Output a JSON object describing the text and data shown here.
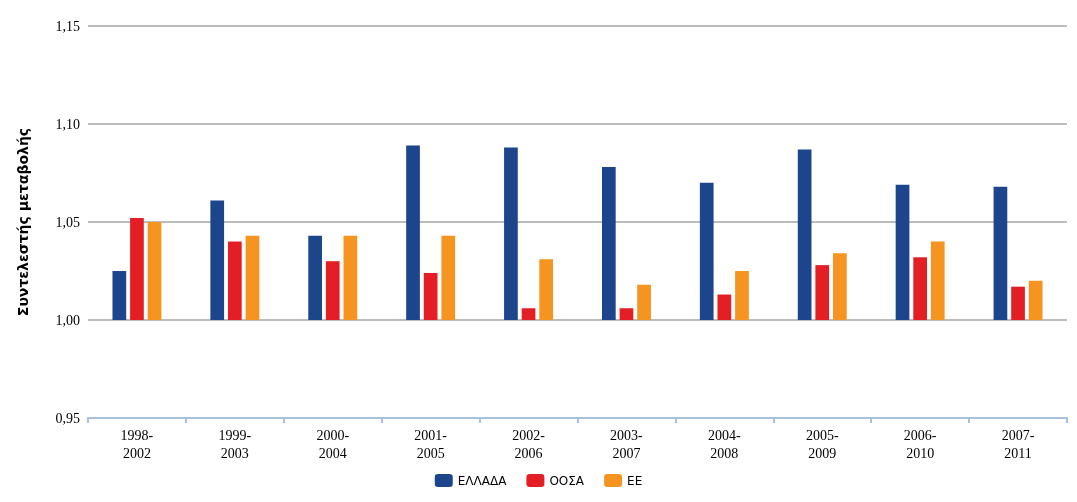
{
  "chart_data": {
    "type": "bar",
    "ylabel": "Συντελεστής μεταβολής",
    "categories": [
      "1998-2002",
      "1999-2003",
      "2000-2004",
      "2001-2005",
      "2002-2006",
      "2003-2007",
      "2004-2008",
      "2005-2009",
      "2006-2010",
      "2007-2011"
    ],
    "series": [
      {
        "name": "ΕΛΛΑΔΑ",
        "color": "#1c458b",
        "base": [
          1,
          1,
          1,
          1,
          1,
          1,
          1,
          1,
          1,
          1
        ],
        "values": [
          0.025,
          0.061,
          0.043,
          0.089,
          0.088,
          0.078,
          0.07,
          0.087,
          0.069,
          0.068
        ]
      },
      {
        "name": "ΟΟΣΑ",
        "color": "#e31e25",
        "base": [
          1,
          1,
          1,
          1,
          1,
          1,
          1,
          1,
          1,
          1
        ],
        "values": [
          0.052,
          0.04,
          0.03,
          0.024,
          0.006,
          0.006,
          0.013,
          0.028,
          0.032,
          0.017
        ]
      },
      {
        "name": "ΕΕ",
        "color": "#f59420",
        "base": [
          1,
          1,
          1,
          1,
          1,
          1,
          1,
          1,
          1,
          1
        ],
        "values": [
          0.05,
          0.043,
          0.043,
          0.043,
          0.031,
          0.018,
          0.025,
          0.034,
          0.04,
          0.02
        ]
      }
    ],
    "ylim": [
      0.95,
      1.15
    ],
    "yticks": [
      {
        "value": 0.95,
        "label": "0,95"
      },
      {
        "value": 1.0,
        "label": "1,00"
      },
      {
        "value": 1.05,
        "label": "1,05"
      },
      {
        "value": 1.1,
        "label": "1,10"
      },
      {
        "value": 1.15,
        "label": "1,15"
      }
    ],
    "grid": "y",
    "legend": "bottom"
  }
}
